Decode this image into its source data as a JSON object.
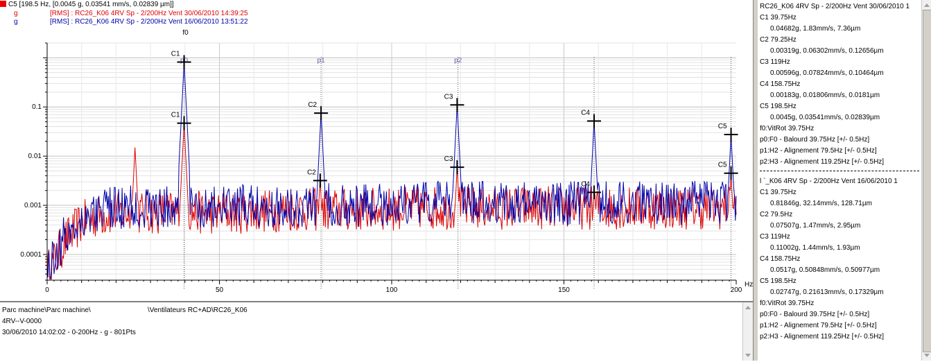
{
  "header": {
    "cursor_line": "C5 [198.5 Hz, [0.0045 g, 0.03541 mm/s, 0.02839 µm]]",
    "series": [
      {
        "unit": "g",
        "label": "[RMS] : RC26_K06 4RV Sp - 2/200Hz Vent 30/06/2010 14:39:25",
        "color": "#dd0000"
      },
      {
        "unit": "g",
        "label": "[RMS] : RC26_K06 4RV Sp - 2/200Hz Vent 16/06/2010 13:51:22",
        "color": "#0000aa"
      }
    ]
  },
  "chart_data": {
    "type": "line",
    "y_scale": "log",
    "xlim": [
      0,
      200
    ],
    "ylim": [
      3e-05,
      2
    ],
    "x_ticks": [
      "0",
      "50",
      "100",
      "150",
      "200"
    ],
    "x_unit": "Hz",
    "y_ticks": [
      {
        "v": 0.1,
        "label": "0.1"
      },
      {
        "v": 0.01,
        "label": "0.01"
      },
      {
        "v": 0.001,
        "label": "0.001"
      },
      {
        "v": 0.0001,
        "label": "0.0001"
      }
    ],
    "grid": true,
    "baseline_profile": [
      [
        0,
        5e-05
      ],
      [
        2,
        8e-05
      ],
      [
        5,
        0.0002
      ],
      [
        10,
        0.0005
      ],
      [
        15,
        0.0007
      ],
      [
        20,
        0.0008
      ],
      [
        30,
        0.0008
      ],
      [
        50,
        0.0008
      ],
      [
        70,
        0.0009
      ],
      [
        90,
        0.0009
      ],
      [
        110,
        0.001
      ],
      [
        150,
        0.001
      ],
      [
        200,
        0.001
      ]
    ],
    "series": [
      {
        "name": "30/06/2010 14:39:25",
        "color": "#dd0000",
        "peaks": [
          [
            25.5,
            0.015
          ],
          [
            39.75,
            0.04682
          ],
          [
            79.25,
            0.00319
          ],
          [
            119,
            0.00596
          ],
          [
            158.75,
            0.00183
          ],
          [
            198.5,
            0.0045
          ]
        ]
      },
      {
        "name": "16/06/2010 13:51:22",
        "color": "#0000aa",
        "peaks": [
          [
            39.75,
            0.81846
          ],
          [
            79.5,
            0.07507
          ],
          [
            119,
            0.11002
          ],
          [
            158.75,
            0.0517
          ],
          [
            198.5,
            0.02747
          ],
          [
            116,
            0.003
          ],
          [
            175,
            0.002
          ],
          [
            196,
            0.003
          ]
        ]
      }
    ],
    "cursor_markers": [
      {
        "label": "C1",
        "x": 39.75,
        "y": 0.81846
      },
      {
        "label": "C1",
        "x": 39.75,
        "y": 0.04682
      },
      {
        "label": "C2",
        "x": 79.5,
        "y": 0.07507
      },
      {
        "label": "C2",
        "x": 79.25,
        "y": 0.00319
      },
      {
        "label": "C3",
        "x": 119,
        "y": 0.11002
      },
      {
        "label": "C3",
        "x": 119,
        "y": 0.00596
      },
      {
        "label": "C4",
        "x": 158.75,
        "y": 0.0517
      },
      {
        "label": "C4",
        "x": 158.75,
        "y": 0.00183
      },
      {
        "label": "C5",
        "x": 198.5,
        "y": 0.02747
      },
      {
        "label": "C5",
        "x": 198.5,
        "y": 0.0045
      }
    ],
    "harmonic_markers": [
      {
        "label": "f0",
        "x": 39.75
      },
      {
        "label": "p0",
        "x": 39.75
      },
      {
        "label": "p1",
        "x": 79.5
      },
      {
        "label": "p2",
        "x": 119.25
      }
    ],
    "plain_dotted_x": [
      158.75,
      198.5
    ]
  },
  "info": {
    "path": "Parc machine\\Parc machine\\",
    "equipment": "\\Ventilateurs RC+AD\\RC26_K06",
    "measure_point": "4RV--V-0000",
    "acquisition": "30/06/2010 14:02:02 - 0-200Hz - g - 801Pts"
  },
  "panel": {
    "blocks": [
      {
        "title": "RC26_K06 4RV Sp - 2/200Hz Vent 30/06/2010 1",
        "cursors": [
          {
            "label": "C1   39.75Hz",
            "value": "0.04682g, 1.83mm/s, 7.36µm"
          },
          {
            "label": "C2   79.25Hz",
            "value": "0.00319g, 0.06302mm/s, 0.12656µm"
          },
          {
            "label": "C3   119Hz",
            "value": "0.00596g, 0.07824mm/s, 0.10464µm"
          },
          {
            "label": "C4   158.75Hz",
            "value": "0.00183g, 0.01806mm/s, 0.0181µm"
          },
          {
            "label": "C5   198.5Hz",
            "value": "0.0045g, 0.03541mm/s, 0.02839µm"
          }
        ],
        "footer": [
          "f0:VitRot 39.75Hz",
          "p0:F0 - Balourd 39.75Hz [+/- 0.5Hz]",
          "p1:H2 - Alignement 79.5Hz [+/- 0.5Hz]",
          "p2:H3 - Alignement 119.25Hz [+/- 0.5Hz]"
        ]
      },
      {
        "title": "l    `_K06 4RV Sp - 2/200Hz Vent 16/06/2010 1",
        "cursors": [
          {
            "label": "C1   39.75Hz",
            "value": "0.81846g, 32.14mm/s, 128.71µm"
          },
          {
            "label": "C2   79.5Hz",
            "value": "0.07507g, 1.47mm/s, 2.95µm"
          },
          {
            "label": "C3   119Hz",
            "value": "0.11002g, 1.44mm/s, 1.93µm"
          },
          {
            "label": "C4   158.75Hz",
            "value": "0.0517g, 0.50848mm/s, 0.50977µm"
          },
          {
            "label": "C5   198.5Hz",
            "value": "0.02747g, 0.21613mm/s, 0.17329µm"
          }
        ],
        "footer": [
          "f0:VitRot 39.75Hz",
          "p0:F0 - Balourd 39.75Hz [+/- 0.5Hz]",
          "p1:H2 - Alignement 79.5Hz [+/- 0.5Hz]",
          "p2:H3 - Alignement 119.25Hz [+/- 0.5Hz]"
        ]
      }
    ]
  }
}
